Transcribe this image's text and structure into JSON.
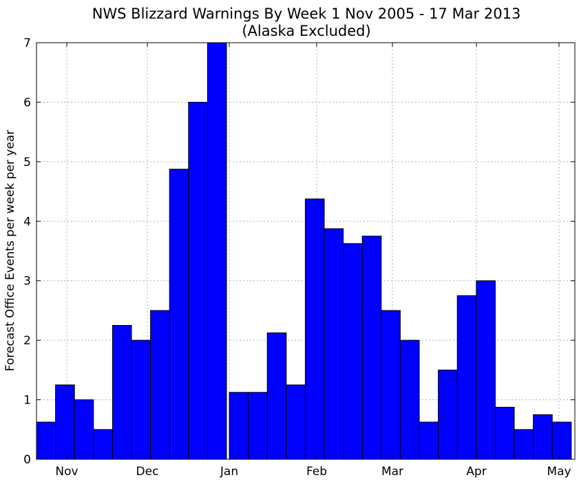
{
  "chart_data": {
    "type": "bar",
    "title": "NWS Blizzard Warnings By Week 1 Nov 2005 - 17 Mar 2013",
    "subtitle": "(Alaska Excluded)",
    "xlabel": "",
    "ylabel": "Forecast Office Events per week per year",
    "ylim": [
      0,
      7
    ],
    "yticks": [
      0,
      1,
      2,
      3,
      4,
      5,
      6,
      7
    ],
    "grid": true,
    "bar_color": "#0000ff",
    "x_tick_labels": [
      "Nov",
      "Dec",
      "Jan",
      "Feb",
      "Mar",
      "Apr",
      "May"
    ],
    "values_before_jan": [
      0.625,
      1.25,
      1.0,
      0.5,
      2.25,
      2.0,
      2.5,
      4.875,
      6.0,
      7.0
    ],
    "values_after_jan": [
      1.125,
      1.125,
      2.125,
      1.25,
      4.375,
      3.875,
      3.625,
      3.75,
      2.5,
      2.0,
      0.625,
      1.5,
      2.75,
      3.0,
      0.875,
      0.5,
      0.75,
      0.625
    ]
  }
}
